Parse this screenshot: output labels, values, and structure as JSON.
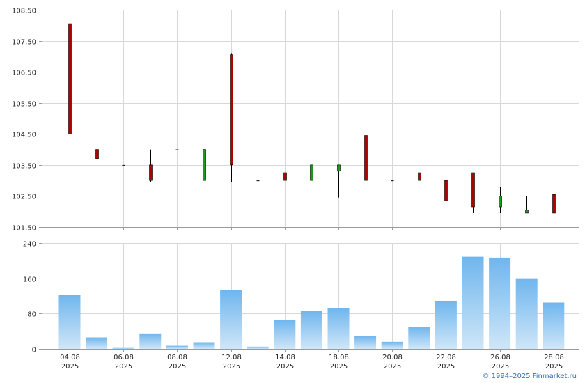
{
  "colors": {
    "up": "#1a9a1a",
    "down": "#b00000",
    "wick": "#000000",
    "grid": "#d8d8d8",
    "axis": "#9a9a9a",
    "bar_top": "#6fb6ee",
    "bar_bottom": "#cfe6f8"
  },
  "footer": {
    "copyright": "© 1994–2025 Finmarket.ru"
  },
  "chart_data": [
    {
      "type": "candlestick",
      "grid": true,
      "ylim": [
        101.5,
        108.5
      ],
      "yticks": [
        "108,50",
        "107,50",
        "106,50",
        "105,50",
        "104,50",
        "103,50",
        "102,50",
        "101,50"
      ],
      "ytick_values": [
        108.5,
        107.5,
        106.5,
        105.5,
        104.5,
        103.5,
        102.5,
        101.5
      ],
      "x": [
        "04.08",
        "05.08",
        "06.08",
        "07.08",
        "08.08",
        "11.08",
        "12.08",
        "13.08",
        "14.08",
        "15.08",
        "18.08",
        "19.08",
        "20.08",
        "21.08",
        "22.08",
        "25.08",
        "26.08",
        "27.08",
        "28.08"
      ],
      "candles": [
        {
          "open": 108.05,
          "high": 108.05,
          "low": 102.95,
          "close": 104.5
        },
        {
          "open": 104.0,
          "high": 104.0,
          "low": 103.7,
          "close": 103.7
        },
        {
          "open": 103.5,
          "high": 103.5,
          "low": 103.5,
          "close": 103.5
        },
        {
          "open": 103.5,
          "high": 104.0,
          "low": 102.95,
          "close": 103.0
        },
        {
          "open": 104.0,
          "high": 104.0,
          "low": 104.0,
          "close": 104.0
        },
        {
          "open": 103.0,
          "high": 104.0,
          "low": 103.0,
          "close": 104.0
        },
        {
          "open": 107.05,
          "high": 107.1,
          "low": 102.95,
          "close": 103.5
        },
        {
          "open": 103.0,
          "high": 103.0,
          "low": 103.0,
          "close": 103.0
        },
        {
          "open": 103.25,
          "high": 103.25,
          "low": 103.0,
          "close": 103.0
        },
        {
          "open": 103.0,
          "high": 103.5,
          "low": 103.0,
          "close": 103.5
        },
        {
          "open": 103.3,
          "high": 103.5,
          "low": 102.45,
          "close": 103.5
        },
        {
          "open": 104.45,
          "high": 104.45,
          "low": 102.55,
          "close": 103.0
        },
        {
          "open": 103.0,
          "high": 103.0,
          "low": 103.0,
          "close": 103.0
        },
        {
          "open": 103.25,
          "high": 103.25,
          "low": 103.0,
          "close": 103.0
        },
        {
          "open": 103.0,
          "high": 103.5,
          "low": 102.35,
          "close": 102.35
        },
        {
          "open": 103.25,
          "high": 103.25,
          "low": 101.95,
          "close": 102.15
        },
        {
          "open": 102.15,
          "high": 102.8,
          "low": 101.95,
          "close": 102.5
        },
        {
          "open": 101.95,
          "high": 102.5,
          "low": 101.95,
          "close": 102.05
        },
        {
          "open": 102.55,
          "high": 102.55,
          "low": 101.95,
          "close": 101.95
        }
      ]
    },
    {
      "type": "bar",
      "grid": true,
      "ylim": [
        0,
        240
      ],
      "yticks": [
        "240",
        "160",
        "80",
        "0"
      ],
      "ytick_values": [
        240,
        160,
        80,
        0
      ],
      "categories": [
        "04.08",
        "05.08",
        "06.08",
        "07.08",
        "08.08",
        "11.08",
        "12.08",
        "13.08",
        "14.08",
        "15.08",
        "18.08",
        "19.08",
        "20.08",
        "21.08",
        "22.08",
        "25.08",
        "26.08",
        "27.08",
        "28.08"
      ],
      "values": [
        123,
        26,
        2,
        35,
        7,
        15,
        133,
        5,
        66,
        86,
        92,
        29,
        16,
        50,
        109,
        209,
        207,
        160,
        105
      ],
      "xtick_labels": [
        {
          "date": "04.08",
          "year": "2025",
          "index": 0
        },
        {
          "date": "06.08",
          "year": "2025",
          "index": 2
        },
        {
          "date": "08.08",
          "year": "2025",
          "index": 4
        },
        {
          "date": "12.08",
          "year": "2025",
          "index": 6
        },
        {
          "date": "14.08",
          "year": "2025",
          "index": 8
        },
        {
          "date": "18.08",
          "year": "2025",
          "index": 10
        },
        {
          "date": "20.08",
          "year": "2025",
          "index": 12
        },
        {
          "date": "22.08",
          "year": "2025",
          "index": 14
        },
        {
          "date": "26.08",
          "year": "2025",
          "index": 16
        },
        {
          "date": "28.08",
          "year": "2025",
          "index": 18
        }
      ]
    }
  ]
}
